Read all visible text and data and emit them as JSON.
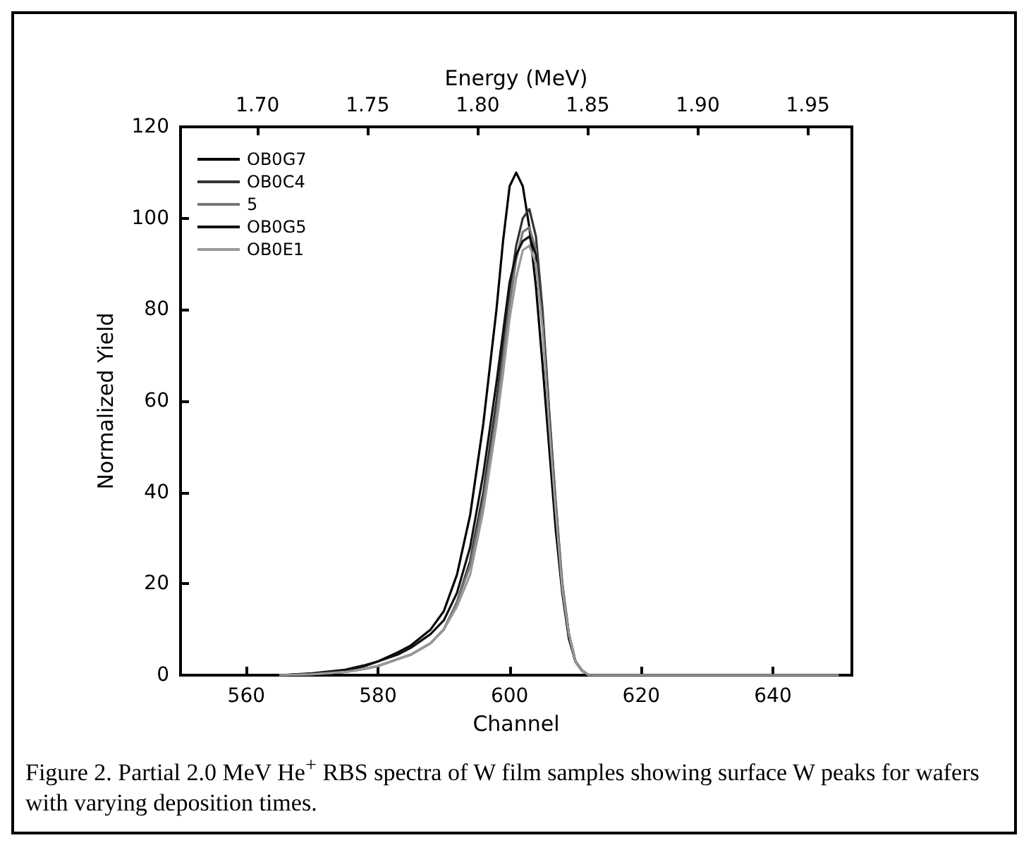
{
  "chart_data": {
    "type": "line",
    "xlabel": "Channel",
    "ylabel": "Normalized Yield",
    "x2label": "Energy (MeV)",
    "annotations": [
      "Figure 2.  Partial 2.0 MeV He$^{+}$ RBS spectra of W film samples showing surface W peaks for wafers with varying deposition times."
    ],
    "xlim": [
      550,
      652
    ],
    "xticks": [
      560,
      580,
      600,
      620,
      640
    ],
    "ylim": [
      0,
      120
    ],
    "yticks": [
      0,
      20,
      40,
      60,
      80,
      100,
      120
    ],
    "x2lim": [
      1.665,
      1.97
    ],
    "x2ticks": [
      {
        "value": 1.7,
        "label": "1.70"
      },
      {
        "value": 1.75,
        "label": "1.75"
      },
      {
        "value": 1.8,
        "label": "1.80"
      },
      {
        "value": 1.85,
        "label": "1.85"
      },
      {
        "value": 1.9,
        "label": "1.90"
      },
      {
        "value": 1.95,
        "label": "1.95"
      }
    ],
    "x": [
      565,
      570,
      575,
      578,
      580,
      583,
      585,
      588,
      590,
      592,
      594,
      596,
      598,
      599,
      600,
      601,
      602,
      603,
      604,
      605,
      606,
      607,
      608,
      609,
      610,
      611,
      612,
      650
    ],
    "legend": "top left",
    "grid": false,
    "marker": "none",
    "line_style": "solid",
    "series": [
      {
        "name": "OB0G7",
        "color": "#000000",
        "values": [
          0,
          0.3,
          1,
          2,
          3,
          5,
          6.5,
          10,
          14,
          22,
          35,
          55,
          80,
          95,
          107,
          110,
          107,
          98,
          85,
          68,
          50,
          32,
          18,
          8,
          3,
          1,
          0,
          0
        ]
      },
      {
        "name": "OB0C4",
        "color": "#333333",
        "values": [
          0,
          0.2,
          0.7,
          1.4,
          2,
          3.5,
          4.5,
          7,
          10,
          16,
          25,
          40,
          60,
          72,
          84,
          94,
          100,
          102,
          96,
          80,
          58,
          38,
          20,
          9,
          3,
          1,
          0,
          0
        ]
      },
      {
        "name": "5",
        "color": "#777777",
        "values": [
          0,
          0.2,
          0.7,
          1.4,
          2,
          3.5,
          4.5,
          7,
          10,
          16,
          24,
          38,
          57,
          69,
          81,
          91,
          97,
          98,
          93,
          78,
          57,
          37,
          20,
          9,
          3,
          1,
          0,
          0
        ]
      },
      {
        "name": "OB0G5",
        "color": "#111111",
        "values": [
          0,
          0.4,
          1.2,
          2.2,
          3,
          4.5,
          6,
          9,
          12,
          18,
          28,
          44,
          64,
          75,
          86,
          92,
          95,
          96,
          92,
          77,
          56,
          36,
          19,
          9,
          3,
          1,
          0,
          0
        ]
      },
      {
        "name": "OB0E1",
        "color": "#999999",
        "values": [
          0,
          0.2,
          0.7,
          1.4,
          2,
          3.5,
          4.5,
          7,
          10,
          15,
          22,
          36,
          55,
          66,
          78,
          87,
          93,
          94,
          90,
          76,
          55,
          36,
          19,
          9,
          3,
          1,
          0,
          0
        ]
      }
    ]
  }
}
